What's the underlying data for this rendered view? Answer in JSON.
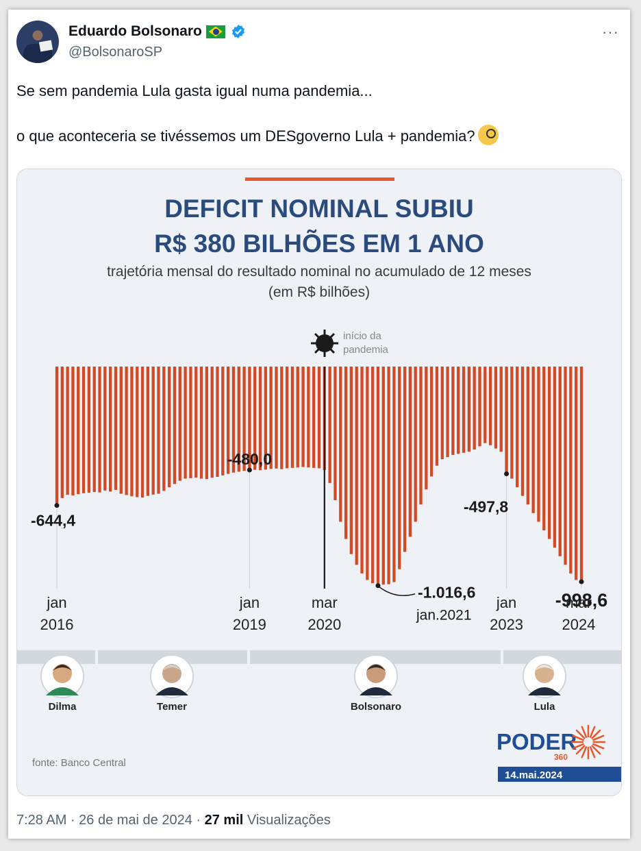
{
  "author": {
    "name": "Eduardo Bolsonaro",
    "handle": "@BolsonaroSP",
    "flag_icon": "brazil-flag-icon",
    "verified_icon": "verified-badge-icon"
  },
  "tweet": {
    "line1": "Se sem pandemia Lula gasta igual numa pandemia...",
    "line2": "o que aconteceria se tivéssemos um DESgoverno Lula + pandemia?",
    "emoji": "face-with-monocle-icon"
  },
  "infographic": {
    "title1": "DEFICIT NOMINAL SUBIU",
    "title2": "R$ 380 BILHÕES EM 1 ANO",
    "subtitle1": "trajetória mensal do resultado nominal no acumulado de 12 meses",
    "subtitle2": "(em R$ bilhões)",
    "pandemic_label1": "início da",
    "pandemic_label2": "pandemia",
    "source": "fonte: Banco Central",
    "brand": "PODER",
    "brand_num": "360",
    "date": "14.mai.2024",
    "presidents": [
      {
        "name": "Dilma"
      },
      {
        "name": "Temer"
      },
      {
        "name": "Bolsonaro"
      },
      {
        "name": "Lula"
      }
    ],
    "colors": {
      "bar": "#d24a25",
      "title": "#2a4b7c",
      "brand": "#1f4e96",
      "accent": "#e8582a"
    }
  },
  "chart_data": {
    "type": "bar",
    "title": "DEFICIT NOMINAL SUBIU R$ 380 BILHÕES EM 1 ANO",
    "xlabel": "",
    "ylabel": "",
    "ylim": [
      -1100,
      0
    ],
    "x_ticks": [
      {
        "month": "jan",
        "year": "2016",
        "index": 0
      },
      {
        "month": "jan",
        "year": "2019",
        "index": 36
      },
      {
        "month": "mar",
        "year": "2020",
        "index": 50
      },
      {
        "month": "jan",
        "year": "2023",
        "index": 84
      },
      {
        "month": "mar",
        "year": "2024",
        "index": 98
      }
    ],
    "annotations": [
      {
        "index": 0,
        "text": "-644,4"
      },
      {
        "index": 36,
        "text": "-480,0"
      },
      {
        "index": 60,
        "text": "-1.016,6",
        "sub": "jan.2021"
      },
      {
        "index": 84,
        "text": "-497,8"
      },
      {
        "index": 98,
        "text": "-998,6"
      }
    ],
    "values": [
      -644.4,
      -610,
      -595,
      -598,
      -592,
      -588,
      -585,
      -582,
      -584,
      -575,
      -580,
      -572,
      -590,
      -596,
      -602,
      -606,
      -608,
      -600,
      -594,
      -590,
      -577,
      -560,
      -545,
      -530,
      -520,
      -518,
      -515,
      -520,
      -522,
      -516,
      -512,
      -505,
      -498,
      -492,
      -488,
      -484,
      -480,
      -479,
      -481,
      -478,
      -475,
      -473,
      -476,
      -472,
      -470,
      -468,
      -466,
      -468,
      -470,
      -472,
      -480,
      -540,
      -620,
      -720,
      -800,
      -870,
      -920,
      -960,
      -990,
      -1005,
      -1016.6,
      -1012,
      -1010,
      -1000,
      -940,
      -860,
      -790,
      -720,
      -640,
      -570,
      -510,
      -460,
      -430,
      -420,
      -410,
      -405,
      -400,
      -395,
      -385,
      -370,
      -355,
      -365,
      -380,
      -395,
      -497.8,
      -520,
      -560,
      -600,
      -640,
      -680,
      -720,
      -760,
      -800,
      -840,
      -880,
      -920,
      -960,
      -990,
      -998.6
    ]
  },
  "footer": {
    "time": "7:28 AM · 26 de mai de 2024 · ",
    "views_count": "27 mil",
    "views_label": " Visualizações"
  }
}
